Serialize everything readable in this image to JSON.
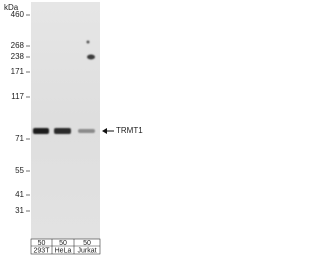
{
  "unit_label": "kDa",
  "markers": [
    "460",
    "268",
    "238",
    "171",
    "117",
    "71",
    "55",
    "41",
    "31"
  ],
  "target_label": "TRMT1",
  "lanes": [
    {
      "load": "50",
      "sample": "293T"
    },
    {
      "load": "50",
      "sample": "HeLa"
    },
    {
      "load": "50",
      "sample": "Jurkat"
    }
  ]
}
